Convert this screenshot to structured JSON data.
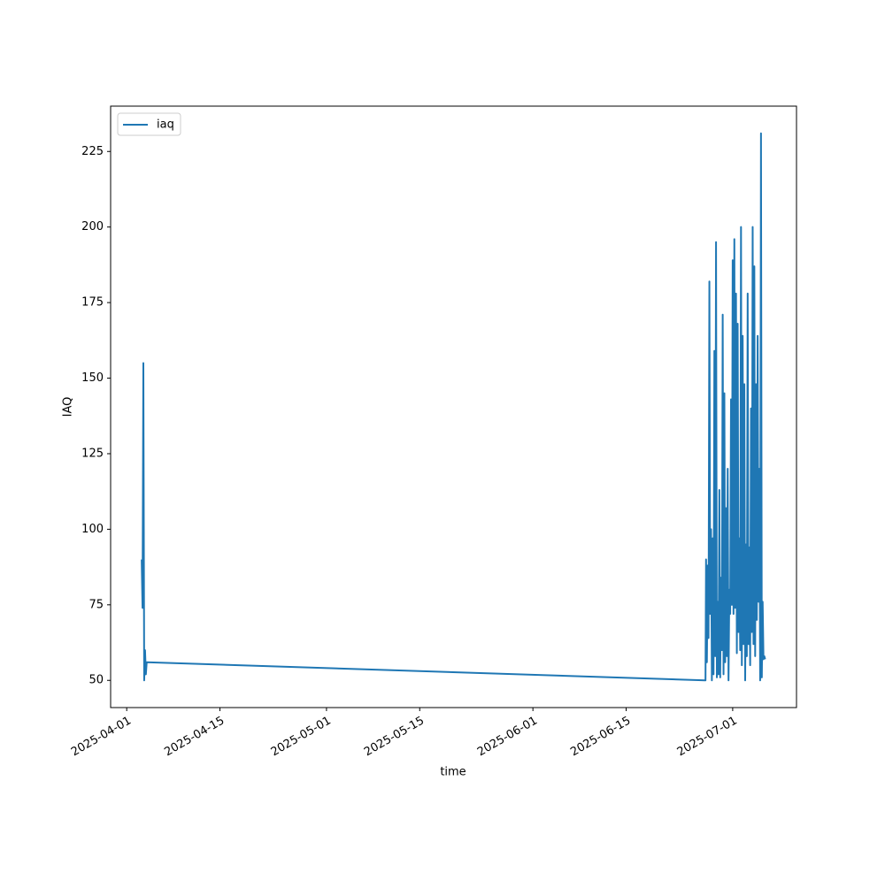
{
  "chart_data": {
    "type": "line",
    "xlabel": "time",
    "ylabel": "IAQ",
    "x": [
      "2025-04-03T06:00",
      "2025-04-03T09:00",
      "2025-04-03T12:00",
      "2025-04-03T15:00",
      "2025-04-03T18:00",
      "2025-04-03T21:00",
      "2025-04-04T00:00",
      "2025-06-26T22:00",
      "2025-06-27T00:00",
      "2025-06-27T03:00",
      "2025-06-27T06:00",
      "2025-06-27T09:00",
      "2025-06-27T12:00",
      "2025-06-27T15:00",
      "2025-06-27T18:00",
      "2025-06-27T21:00",
      "2025-06-28T00:00",
      "2025-06-28T03:00",
      "2025-06-28T06:00",
      "2025-06-28T09:00",
      "2025-06-28T12:00",
      "2025-06-28T15:00",
      "2025-06-28T18:00",
      "2025-06-28T21:00",
      "2025-06-29T00:00",
      "2025-06-29T03:00",
      "2025-06-29T06:00",
      "2025-06-29T09:00",
      "2025-06-29T12:00",
      "2025-06-29T15:00",
      "2025-06-29T18:00",
      "2025-06-29T21:00",
      "2025-06-30T00:00",
      "2025-06-30T03:00",
      "2025-06-30T06:00",
      "2025-06-30T09:00",
      "2025-06-30T12:00",
      "2025-06-30T15:00",
      "2025-06-30T18:00",
      "2025-06-30T21:00",
      "2025-07-01T00:00",
      "2025-07-01T03:00",
      "2025-07-01T06:00",
      "2025-07-01T09:00",
      "2025-07-01T12:00",
      "2025-07-01T15:00",
      "2025-07-01T18:00",
      "2025-07-01T21:00",
      "2025-07-02T00:00",
      "2025-07-02T03:00",
      "2025-07-02T06:00",
      "2025-07-02T09:00",
      "2025-07-02T12:00",
      "2025-07-02T15:00",
      "2025-07-02T18:00",
      "2025-07-02T21:00",
      "2025-07-03T00:00",
      "2025-07-03T03:00",
      "2025-07-03T06:00",
      "2025-07-03T09:00",
      "2025-07-03T12:00",
      "2025-07-03T15:00",
      "2025-07-03T18:00",
      "2025-07-03T21:00",
      "2025-07-04T00:00",
      "2025-07-04T03:00",
      "2025-07-04T06:00",
      "2025-07-04T09:00",
      "2025-07-04T12:00",
      "2025-07-04T15:00",
      "2025-07-04T18:00",
      "2025-07-04T21:00",
      "2025-07-05T00:00",
      "2025-07-05T03:00",
      "2025-07-05T06:00",
      "2025-07-05T09:00",
      "2025-07-05T12:00",
      "2025-07-05T15:00",
      "2025-07-05T18:00",
      "2025-07-05T21:00"
    ],
    "series": [
      {
        "name": "iaq",
        "color": "#1f77b4",
        "values": [
          90,
          74,
          155,
          50,
          60,
          52,
          56,
          50,
          90,
          56,
          88,
          64,
          182,
          72,
          100,
          50,
          97,
          52,
          159,
          58,
          195,
          51,
          76,
          52,
          113,
          51,
          84,
          60,
          171,
          52,
          145,
          56,
          107,
          58,
          120,
          50,
          80,
          72,
          143,
          75,
          189,
          72,
          196,
          74,
          178,
          59,
          168,
          66,
          97,
          60,
          200,
          55,
          164,
          62,
          148,
          50,
          95,
          58,
          178,
          62,
          94,
          55,
          140,
          66,
          200,
          62,
          187,
          58,
          148,
          70,
          164,
          76,
          120,
          50,
          231,
          51,
          76,
          57,
          58,
          57
        ]
      }
    ],
    "xlim": [
      "2025-03-29T14:00",
      "2025-07-10T14:00"
    ],
    "xticks": [
      "2025-04-01",
      "2025-04-15",
      "2025-05-01",
      "2025-05-15",
      "2025-06-01",
      "2025-06-15",
      "2025-07-01"
    ],
    "ylim": [
      41,
      240
    ],
    "yticks": [
      50,
      75,
      100,
      125,
      150,
      175,
      200,
      225
    ],
    "legend": "upper left"
  }
}
